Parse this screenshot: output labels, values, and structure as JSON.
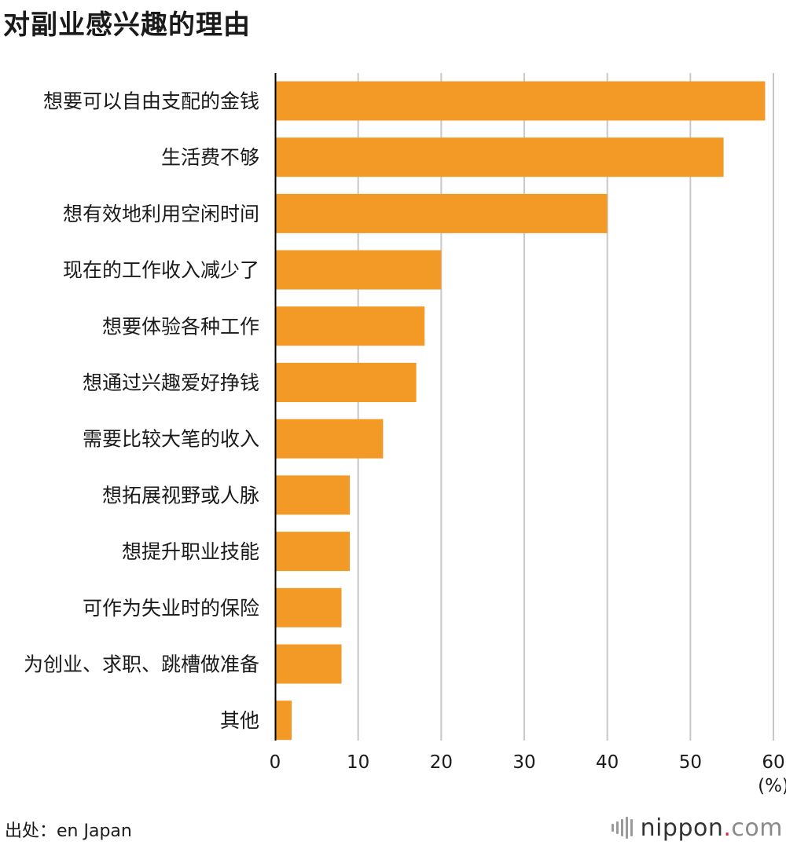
{
  "header": {
    "title": "对副业感兴趣的理由"
  },
  "footer": {
    "source": "出处：en Japan",
    "brand_name": "nippon",
    "brand_dot": ".",
    "brand_suffix": "com"
  },
  "colors": {
    "bar": "#f39a26",
    "grid": "#c8c8c8",
    "axis": "#000000",
    "text": "#1a1a1a"
  },
  "chart_data": {
    "type": "bar",
    "orientation": "horizontal",
    "categories": [
      "想要可以自由支配的金钱",
      "生活费不够",
      "想有效地利用空闲时间",
      "现在的工作收入减少了",
      "想要体验各种工作",
      "想通过兴趣爱好挣钱",
      "需要比较大笔的收入",
      "想拓展视野或人脉",
      "想提升职业技能",
      "可作为失业时的保险",
      "为创业、求职、跳槽做准备",
      "其他"
    ],
    "values": [
      59,
      54,
      40,
      20,
      18,
      17,
      13,
      9,
      9,
      8,
      8,
      2
    ],
    "xlim": [
      0,
      60
    ],
    "xticks": [
      0,
      10,
      20,
      30,
      40,
      50,
      60
    ],
    "unit_label": "(%)",
    "grid": true
  }
}
